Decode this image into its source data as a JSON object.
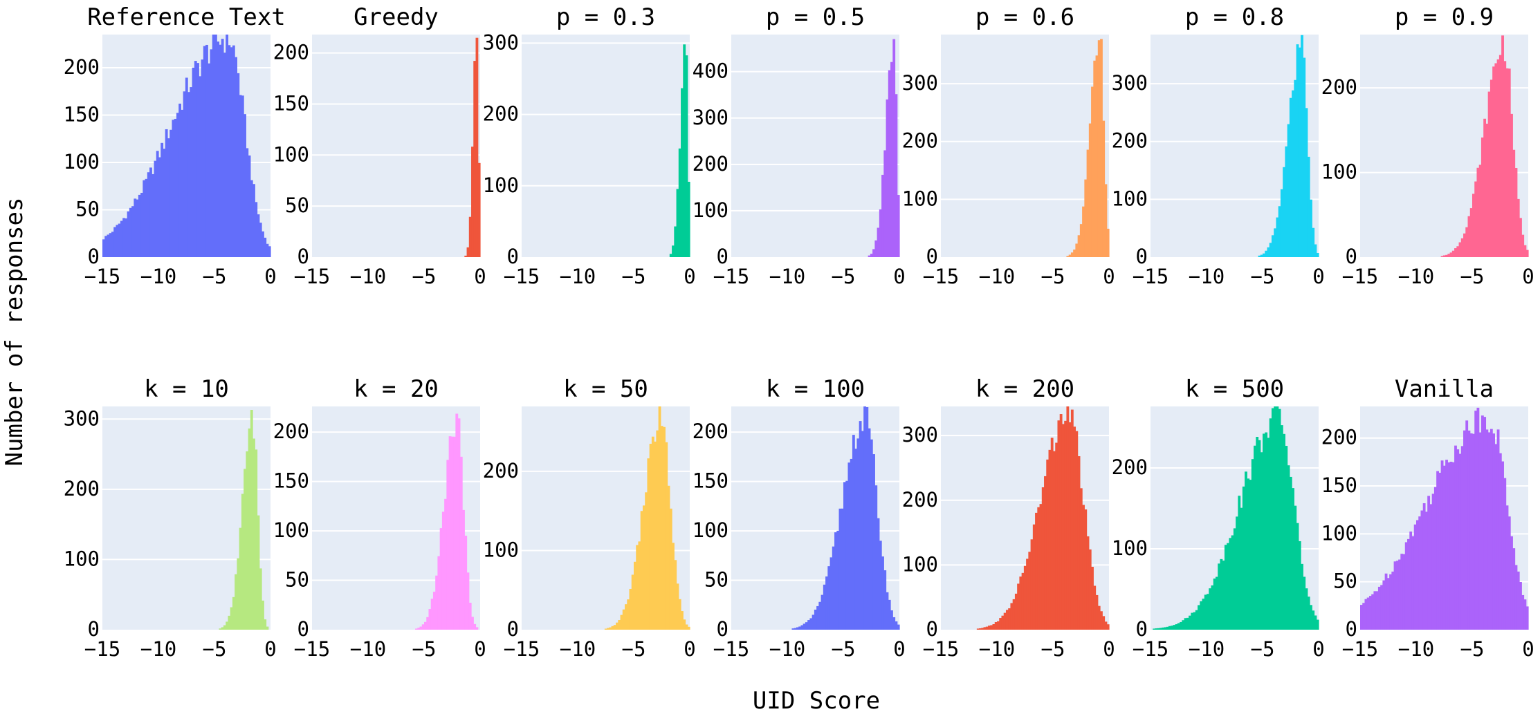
{
  "figure": {
    "xlabel": "UID Score",
    "ylabel": "Number of responses"
  },
  "chart_data": [
    {
      "type": "bar",
      "title": "Reference Text",
      "color": "#636efa",
      "xlim": [
        -15,
        0
      ],
      "ylim": [
        0,
        235
      ],
      "xticks": [
        -15,
        -10,
        -5,
        0
      ],
      "yticks": [
        0,
        50,
        100,
        150,
        200
      ],
      "dist": {
        "kind": "skew",
        "mode": -3.8,
        "sigmaL": 5.0,
        "sigmaR": 1.5,
        "peak": 232
      }
    },
    {
      "type": "bar",
      "title": "Greedy",
      "color": "#ef553b",
      "xlim": [
        -15,
        0
      ],
      "ylim": [
        0,
        218
      ],
      "xticks": [
        -15,
        -10,
        -5,
        0
      ],
      "yticks": [
        0,
        50,
        100,
        150,
        200
      ],
      "dist": {
        "kind": "skew",
        "mode": -0.35,
        "sigmaL": 0.3,
        "sigmaR": 0.2,
        "peak": 208
      }
    },
    {
      "type": "bar",
      "title": "p = 0.3",
      "color": "#00cc96",
      "xlim": [
        -15,
        0
      ],
      "ylim": [
        0,
        312
      ],
      "xticks": [
        -15,
        -10,
        -5,
        0
      ],
      "yticks": [
        0,
        100,
        200,
        300
      ],
      "dist": {
        "kind": "skew",
        "mode": -0.4,
        "sigmaL": 0.45,
        "sigmaR": 0.2,
        "peak": 305
      }
    },
    {
      "type": "bar",
      "title": "p = 0.5",
      "color": "#ab63fa",
      "xlim": [
        -15,
        0
      ],
      "ylim": [
        0,
        480
      ],
      "xticks": [
        -15,
        -10,
        -5,
        0
      ],
      "yticks": [
        0,
        100,
        200,
        300,
        400
      ],
      "dist": {
        "kind": "skew",
        "mode": -0.5,
        "sigmaL": 0.7,
        "sigmaR": 0.25,
        "peak": 465
      }
    },
    {
      "type": "bar",
      "title": "p = 0.6",
      "color": "#ffa15a",
      "xlim": [
        -15,
        0
      ],
      "ylim": [
        0,
        385
      ],
      "xticks": [
        -15,
        -10,
        -5,
        0
      ],
      "yticks": [
        0,
        100,
        200,
        300
      ],
      "dist": {
        "kind": "skew",
        "mode": -0.8,
        "sigmaL": 0.9,
        "sigmaR": 0.35,
        "peak": 370
      }
    },
    {
      "type": "bar",
      "title": "p = 0.8",
      "color": "#19d3f3",
      "xlim": [
        -15,
        0
      ],
      "ylim": [
        0,
        385
      ],
      "xticks": [
        -15,
        -10,
        -5,
        0
      ],
      "yticks": [
        0,
        100,
        200,
        300
      ],
      "dist": {
        "kind": "skew",
        "mode": -1.5,
        "sigmaL": 1.2,
        "sigmaR": 0.5,
        "peak": 370
      }
    },
    {
      "type": "bar",
      "title": "p = 0.9",
      "color": "#ff6692",
      "xlim": [
        -15,
        0
      ],
      "ylim": [
        0,
        263
      ],
      "xticks": [
        -15,
        -10,
        -5,
        0
      ],
      "yticks": [
        0,
        100,
        200
      ],
      "dist": {
        "kind": "skew",
        "mode": -2.2,
        "sigmaL": 1.7,
        "sigmaR": 0.8,
        "peak": 252
      }
    },
    {
      "type": "bar",
      "title": "k = 10",
      "color": "#b6e880",
      "xlim": [
        -15,
        0
      ],
      "ylim": [
        0,
        318
      ],
      "xticks": [
        -15,
        -10,
        -5,
        0
      ],
      "yticks": [
        0,
        100,
        200,
        300
      ],
      "dist": {
        "kind": "skew",
        "mode": -1.6,
        "sigmaL": 0.9,
        "sigmaR": 0.45,
        "peak": 300
      }
    },
    {
      "type": "bar",
      "title": "k = 20",
      "color": "#ff97ff",
      "xlim": [
        -15,
        0
      ],
      "ylim": [
        0,
        226
      ],
      "xticks": [
        -15,
        -10,
        -5,
        0
      ],
      "yticks": [
        0,
        50,
        100,
        150,
        200
      ],
      "dist": {
        "kind": "skew",
        "mode": -2.1,
        "sigmaL": 1.1,
        "sigmaR": 0.6,
        "peak": 215
      }
    },
    {
      "type": "bar",
      "title": "k = 50",
      "color": "#fecb52",
      "xlim": [
        -15,
        0
      ],
      "ylim": [
        0,
        282
      ],
      "xticks": [
        -15,
        -10,
        -5,
        0
      ],
      "yticks": [
        0,
        100,
        200
      ],
      "dist": {
        "kind": "skew",
        "mode": -2.6,
        "sigmaL": 1.5,
        "sigmaR": 0.85,
        "peak": 267
      }
    },
    {
      "type": "bar",
      "title": "k = 100",
      "color": "#636efa",
      "xlim": [
        -15,
        0
      ],
      "ylim": [
        0,
        226
      ],
      "xticks": [
        -15,
        -10,
        -5,
        0
      ],
      "yticks": [
        0,
        50,
        100,
        150,
        200
      ],
      "dist": {
        "kind": "skew",
        "mode": -3.1,
        "sigmaL": 2.0,
        "sigmaR": 1.1,
        "peak": 215
      }
    },
    {
      "type": "bar",
      "title": "k = 200",
      "color": "#ef553b",
      "xlim": [
        -15,
        0
      ],
      "ylim": [
        0,
        345
      ],
      "xticks": [
        -15,
        -10,
        -5,
        0
      ],
      "yticks": [
        0,
        100,
        200,
        300
      ],
      "dist": {
        "kind": "skew",
        "mode": -3.6,
        "sigmaL": 2.5,
        "sigmaR": 1.3,
        "peak": 335
      }
    },
    {
      "type": "bar",
      "title": "k = 500",
      "color": "#00cc96",
      "xlim": [
        -15,
        0
      ],
      "ylim": [
        0,
        276
      ],
      "xticks": [
        -15,
        -10,
        -5,
        0
      ],
      "yticks": [
        0,
        100,
        200
      ],
      "dist": {
        "kind": "skew",
        "mode": -3.6,
        "sigmaL": 3.4,
        "sigmaR": 1.4,
        "peak": 262
      }
    },
    {
      "type": "bar",
      "title": "Vanilla",
      "color": "#ab63fa",
      "xlim": [
        -15,
        0
      ],
      "ylim": [
        0,
        233
      ],
      "xticks": [
        -15,
        -10,
        -5,
        0
      ],
      "yticks": [
        0,
        50,
        100,
        150,
        200
      ],
      "dist": {
        "kind": "skew",
        "mode": -3.5,
        "sigmaL": 5.5,
        "sigmaR": 1.6,
        "peak": 222
      }
    }
  ]
}
